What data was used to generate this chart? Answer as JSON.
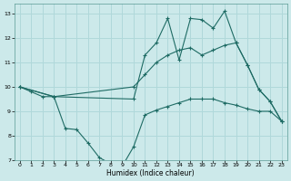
{
  "xlabel": "Humidex (Indice chaleur)",
  "bg_color": "#cce9ea",
  "grid_color": "#b0d8da",
  "line_color": "#1e6b64",
  "xlim": [
    -0.5,
    23.5
  ],
  "ylim": [
    7,
    13.4
  ],
  "xticks": [
    0,
    1,
    2,
    3,
    4,
    5,
    6,
    7,
    8,
    9,
    10,
    11,
    12,
    13,
    14,
    15,
    16,
    17,
    18,
    19,
    20,
    21,
    22,
    23
  ],
  "yticks": [
    7,
    8,
    9,
    10,
    11,
    12,
    13
  ],
  "line1_x": [
    0,
    1,
    2,
    3,
    4,
    5,
    6,
    7,
    8,
    9,
    10,
    11,
    12,
    13,
    14,
    15,
    16,
    17,
    18,
    19,
    20,
    21,
    22,
    23
  ],
  "line1_y": [
    10.0,
    9.8,
    9.6,
    9.6,
    8.3,
    8.25,
    7.7,
    7.1,
    6.85,
    6.75,
    7.55,
    8.85,
    9.05,
    9.2,
    9.35,
    9.5,
    9.5,
    9.5,
    9.35,
    9.25,
    9.1,
    9.0,
    9.0,
    8.6
  ],
  "line2_x": [
    0,
    3,
    10,
    11,
    12,
    13,
    14,
    15,
    16,
    17,
    18,
    19,
    20,
    21,
    22,
    23
  ],
  "line2_y": [
    10.0,
    9.6,
    9.5,
    11.3,
    11.8,
    12.8,
    11.1,
    12.8,
    12.75,
    12.4,
    13.1,
    11.8,
    10.9,
    9.9,
    9.4,
    8.6
  ],
  "line3_x": [
    0,
    3,
    10,
    11,
    12,
    13,
    14,
    15,
    16,
    17,
    18,
    19,
    20,
    21,
    22,
    23
  ],
  "line3_y": [
    10.0,
    9.6,
    10.0,
    10.5,
    11.0,
    11.3,
    11.5,
    11.6,
    11.3,
    11.5,
    11.7,
    11.8,
    10.9,
    9.9,
    9.4,
    8.6
  ]
}
